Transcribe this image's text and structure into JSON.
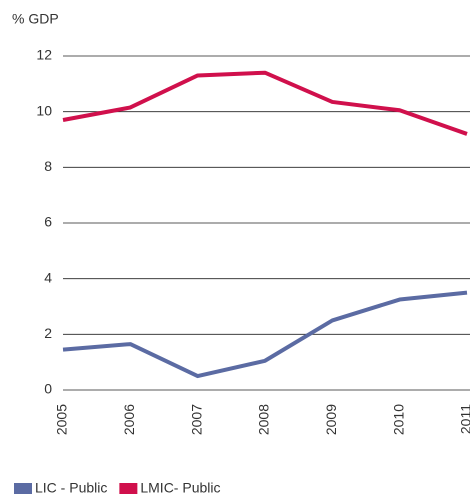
{
  "chart_data": {
    "type": "line",
    "y_label": "% GDP",
    "categories": [
      "2005",
      "2006",
      "2007",
      "2008",
      "2009",
      "2010",
      "2011"
    ],
    "series": [
      {
        "name": "LIC - Public",
        "color": "#5b6ba3",
        "values": [
          1.45,
          1.65,
          0.5,
          1.05,
          2.5,
          3.25,
          3.5
        ]
      },
      {
        "name": "LMIC- Public",
        "color": "#d0104c",
        "values": [
          9.7,
          10.15,
          11.3,
          11.4,
          10.35,
          10.05,
          9.2
        ]
      }
    ],
    "ylim": [
      0,
      12
    ],
    "yticks": [
      0,
      2,
      4,
      6,
      8,
      10,
      12
    ],
    "grid": true,
    "legend": "bottom"
  }
}
